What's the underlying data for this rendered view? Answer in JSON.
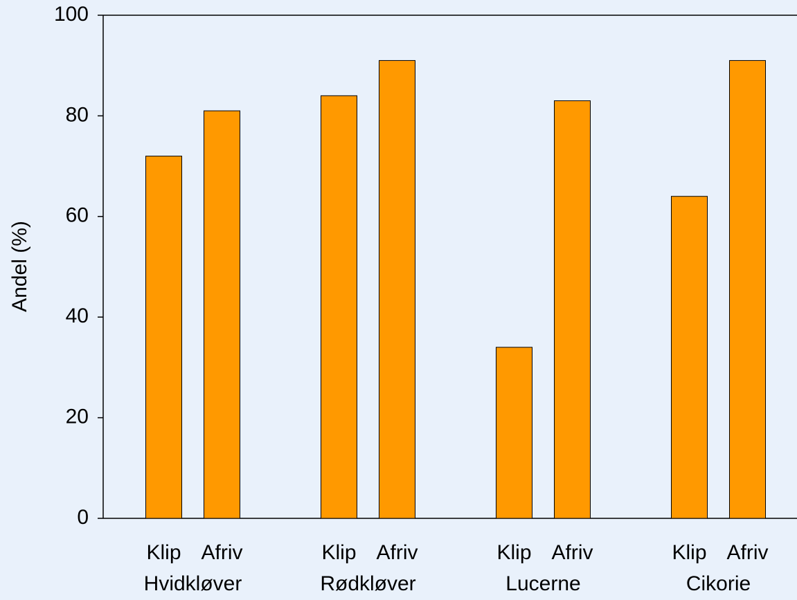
{
  "chart_data": {
    "type": "bar",
    "y_label": "Andel (%)",
    "categories": [
      "Hvidkløver",
      "Rødkløver",
      "Lucerne",
      "Cikorie"
    ],
    "series": [
      {
        "name": "Klip",
        "color": "#ff9900",
        "values": [
          72,
          84,
          34,
          64
        ]
      },
      {
        "name": "Afriv",
        "color": "#ff9900",
        "values": [
          81,
          91,
          83,
          91
        ]
      }
    ],
    "ylim": [
      0,
      100
    ],
    "yticks": [
      0,
      20,
      40,
      60,
      80,
      100
    ],
    "grid": false
  }
}
